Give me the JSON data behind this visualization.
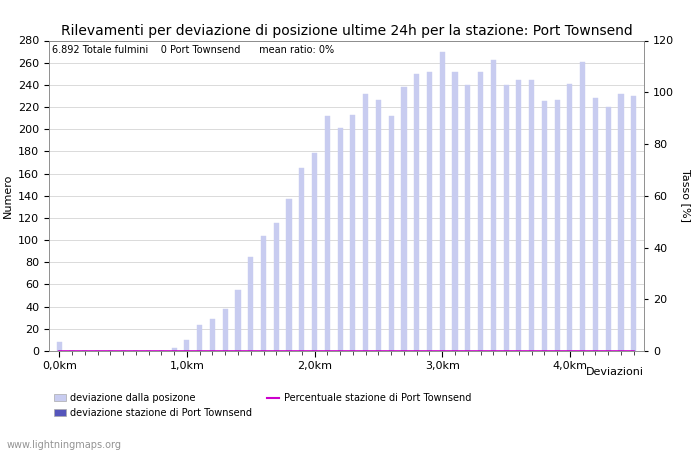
{
  "title": "Rilevamenti per deviazione di posizione ultime 24h per la stazione: Port Townsend",
  "subtitle": "6.892 Totale fulmini    0 Port Townsend      mean ratio: 0%",
  "xlabel": "Deviazioni",
  "ylabel_left": "Numero",
  "ylabel_right": "Tasso [%]",
  "watermark": "www.lightningmaps.org",
  "bar_color": "#c8ccf0",
  "bar_color_station": "#5555bb",
  "line_color": "#cc00cc",
  "background_color": "#ffffff",
  "grid_color": "#cccccc",
  "ylim_left": [
    0,
    280
  ],
  "ylim_right": [
    0,
    120
  ],
  "yticks_left": [
    0,
    20,
    40,
    60,
    80,
    100,
    120,
    140,
    160,
    180,
    200,
    220,
    240,
    260,
    280
  ],
  "yticks_right": [
    0,
    20,
    40,
    60,
    80,
    100,
    120
  ],
  "xtick_labels": [
    "0,0km",
    "1,0km",
    "2,0km",
    "3,0km",
    "4,0km"
  ],
  "xtick_positions": [
    0,
    10,
    20,
    30,
    40
  ],
  "bar_values": [
    8,
    0,
    0,
    0,
    0,
    0,
    0,
    0,
    0,
    3,
    10,
    23,
    29,
    38,
    55,
    85,
    104,
    115,
    137,
    165,
    179,
    212,
    201,
    213,
    232,
    226,
    212,
    238,
    250,
    252,
    270,
    252,
    240,
    252,
    262,
    240,
    244,
    244,
    225,
    226,
    241,
    261,
    228,
    220,
    232,
    230
  ],
  "station_bar_values": [
    0,
    0,
    0,
    0,
    0,
    0,
    0,
    0,
    0,
    0,
    0,
    0,
    0,
    0,
    0,
    0,
    0,
    0,
    0,
    0,
    0,
    0,
    0,
    0,
    0,
    0,
    0,
    0,
    0,
    0,
    0,
    0,
    0,
    0,
    0,
    0,
    0,
    0,
    0,
    0,
    0,
    0,
    0,
    0,
    0,
    0
  ],
  "ratio_values": [
    0,
    0,
    0,
    0,
    0,
    0,
    0,
    0,
    0,
    0,
    0,
    0,
    0,
    0,
    0,
    0,
    0,
    0,
    0,
    0,
    0,
    0,
    0,
    0,
    0,
    0,
    0,
    0,
    0,
    0,
    0,
    0,
    0,
    0,
    0,
    0,
    0,
    0,
    0,
    0,
    0,
    0,
    0,
    0,
    0,
    0
  ],
  "legend_labels": [
    "deviazione dalla posizone",
    "deviazione stazione di Port Townsend",
    "Percentuale stazione di Port Townsend"
  ],
  "font_size": 8,
  "title_font_size": 10
}
